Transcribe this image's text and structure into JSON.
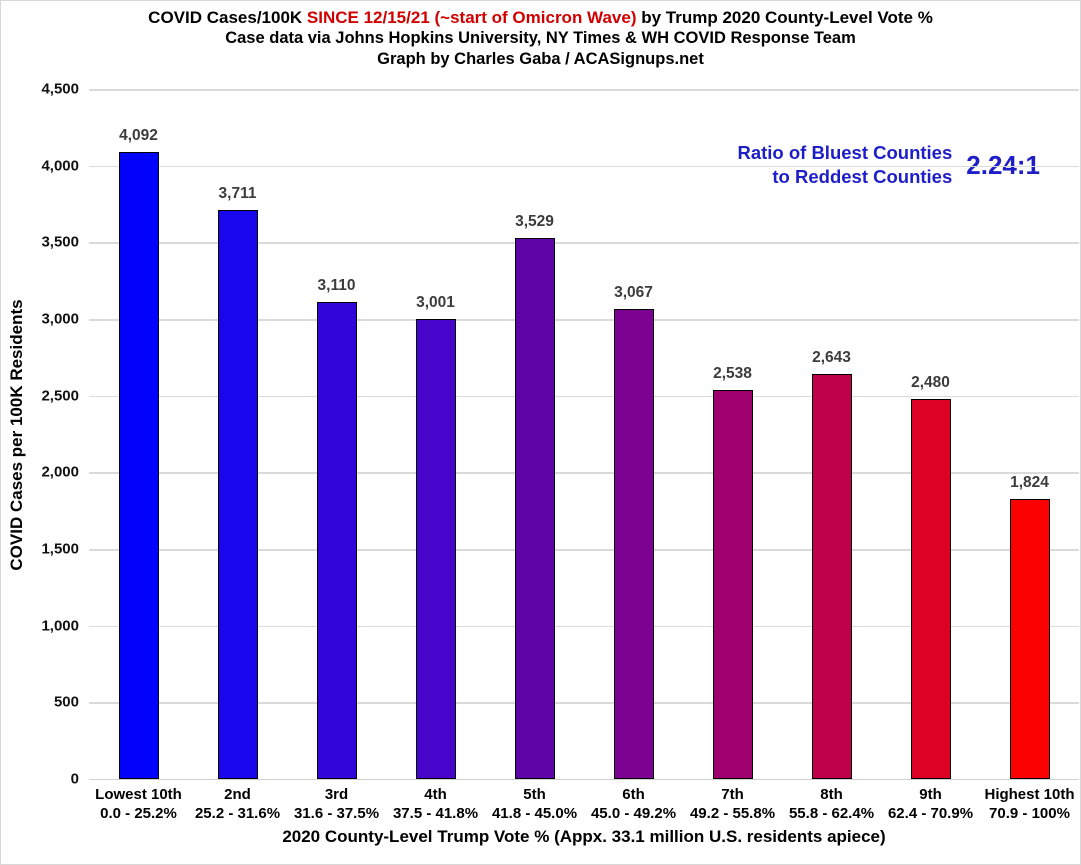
{
  "header": {
    "title_part1": "COVID Cases/100K ",
    "title_highlight": "SINCE 12/15/21 (~start of Omicron Wave)",
    "title_part2": " by Trump 2020 County-Level Vote %",
    "subtitle1": "Case data via Johns Hopkins University, NY Times & WH COVID Response Team",
    "subtitle2": "Graph by Charles Gaba / ACASignups.net"
  },
  "annotation": {
    "line1": "Ratio of Bluest Counties",
    "line2": "to Reddest Counties",
    "value": "2.24:1",
    "color": "#1e1ec8"
  },
  "colors": {
    "title_highlight": "#d10000",
    "gridline": "#dadada",
    "bar_value_label": "#3c3c3c"
  },
  "chart_data": {
    "type": "bar",
    "title": "COVID Cases/100K SINCE 12/15/21 (~start of Omicron Wave) by Trump 2020 County-Level Vote %",
    "subtitle": "Case data via Johns Hopkins University, NY Times & WH COVID Response Team — Graph by Charles Gaba / ACASignups.net",
    "xlabel": "2020 County-Level Trump Vote % (Appx. 33.1 million U.S. residents apiece)",
    "ylabel": "COVID Cases per 100K Residents",
    "ylim": [
      0,
      4500
    ],
    "ytick_step": 500,
    "grid": true,
    "legend": false,
    "categories": [
      "Lowest 10th",
      "2nd",
      "3rd",
      "4th",
      "5th",
      "6th",
      "7th",
      "8th",
      "9th",
      "Highest 10th"
    ],
    "category_ranges": [
      "0.0 - 25.2%",
      "25.2 - 31.6%",
      "31.6 - 37.5%",
      "37.5 - 41.8%",
      "41.8 - 45.0%",
      "45.0 - 49.2%",
      "49.2 - 55.8%",
      "55.8 - 62.4%",
      "62.4 - 70.9%",
      "70.9 - 100%"
    ],
    "values": [
      4092,
      3711,
      3110,
      3001,
      3529,
      3067,
      2538,
      2643,
      2480,
      1824
    ],
    "value_labels": [
      "4,092",
      "3,711",
      "3,110",
      "3,001",
      "3,529",
      "3,067",
      "2,538",
      "2,643",
      "2,480",
      "1,824"
    ],
    "bar_colors": [
      "#0202fa",
      "#1a06ec",
      "#3206da",
      "#4806cc",
      "#5e05a8",
      "#7c0292",
      "#9e016e",
      "#be014a",
      "#de0126",
      "#fa0202"
    ],
    "annotation": {
      "text": "Ratio of Bluest Counties to Reddest Counties",
      "value": "2.24:1"
    }
  }
}
